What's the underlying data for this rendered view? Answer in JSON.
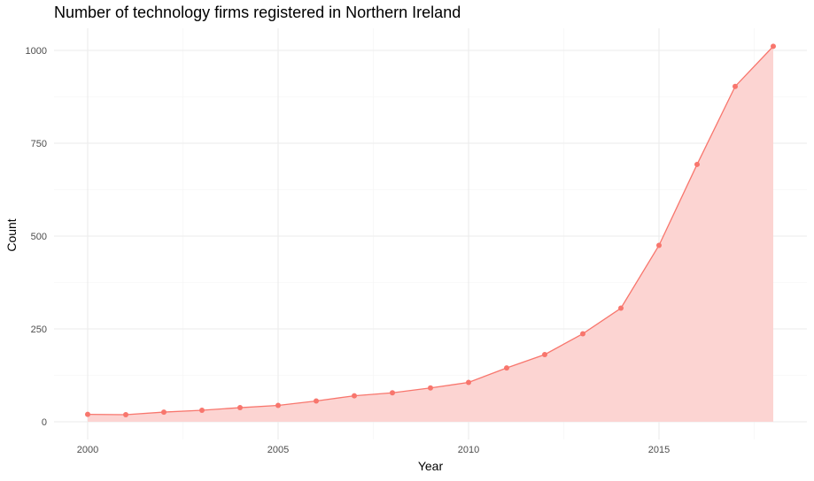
{
  "chart_data": {
    "type": "area",
    "title": "Number of technology firms registered in Northern Ireland",
    "xlabel": "Year",
    "ylabel": "Count",
    "xlim": [
      2000,
      2018
    ],
    "ylim": [
      0,
      1010
    ],
    "x_ticks": [
      "2000",
      "2005",
      "2010",
      "2015"
    ],
    "y_ticks": [
      "0",
      "250",
      "500",
      "750",
      "1000"
    ],
    "grid": true,
    "legend": "none",
    "line_color": "#F8766D",
    "fill_color": "#FCD4D2",
    "x": [
      2000,
      2001,
      2002,
      2003,
      2004,
      2005,
      2006,
      2007,
      2008,
      2009,
      2010,
      2011,
      2012,
      2013,
      2014,
      2015,
      2016,
      2017,
      2018
    ],
    "values": [
      20,
      19,
      26,
      31,
      38,
      44,
      56,
      70,
      78,
      91,
      106,
      145,
      181,
      237,
      306,
      475,
      693,
      903,
      1011
    ]
  }
}
